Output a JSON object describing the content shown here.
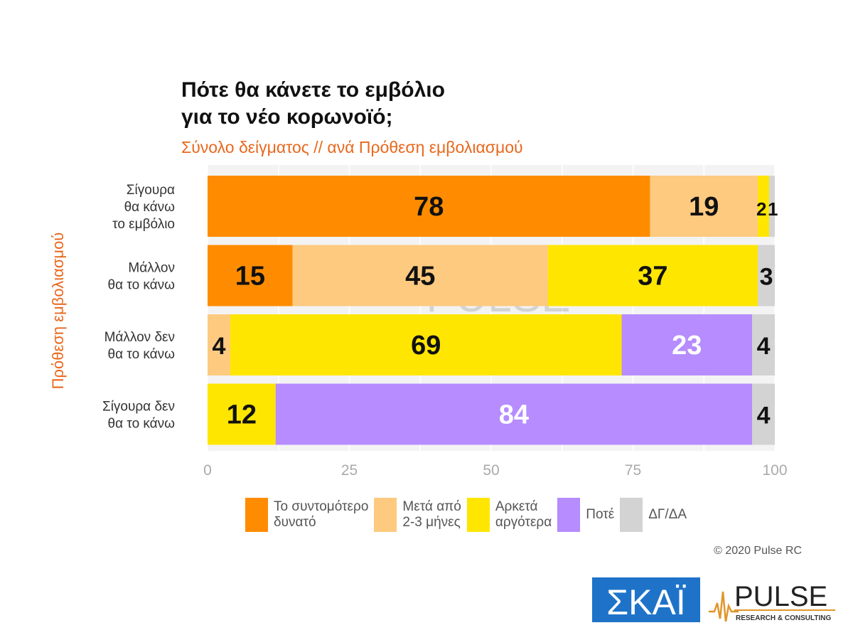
{
  "title_lines": [
    "Πότε θα κάνετε το εμβόλιο",
    "για το νέο κορωνοϊό;"
  ],
  "subtitle": "Σύνολο δείγματος // ανά Πρόθεση εμβολιασμού",
  "yaxis_title": "Πρόθεση εμβολιασμού",
  "copyright": "© 2020 Pulse RC",
  "logos": {
    "skai": "ΣΚΑΪ",
    "pulse": "PULSE",
    "pulse_tagline": "RESEARCH & CONSULTING",
    "watermark": "PULSE",
    "watermark_tagline": "RESEARCH & CONSULTING"
  },
  "chart_data": {
    "type": "bar",
    "orientation": "horizontal",
    "stacked": true,
    "categories": [
      [
        "Σίγουρα",
        "θα κάνω",
        "το εμβόλιο"
      ],
      [
        "Μάλλον",
        "θα το κάνω"
      ],
      [
        "Μάλλον δεν",
        "θα το κάνω"
      ],
      [
        "Σίγουρα δεν",
        "θα το κάνω"
      ]
    ],
    "series": [
      {
        "name": [
          "Το συντομότερο",
          "δυνατό"
        ],
        "color": "#ff8c00",
        "label_color": "#111111",
        "values": [
          78,
          15,
          0,
          0
        ]
      },
      {
        "name": [
          "Μετά από",
          "2-3 μήνες"
        ],
        "color": "#fdca80",
        "label_color": "#111111",
        "values": [
          19,
          45,
          4,
          0
        ]
      },
      {
        "name": [
          "Αρκετά",
          "αργότερα"
        ],
        "color": "#ffe600",
        "label_color": "#111111",
        "values": [
          2,
          37,
          69,
          12
        ]
      },
      {
        "name": [
          "Ποτέ"
        ],
        "color": "#b68cff",
        "label_color": "#ffffff",
        "values": [
          0,
          0,
          23,
          84
        ]
      },
      {
        "name": [
          "ΔΓ/ΔΑ"
        ],
        "color": "#d3d3d3",
        "label_color": "#111111",
        "values": [
          1,
          3,
          4,
          4
        ]
      }
    ],
    "xlim": [
      0,
      100
    ],
    "xticks": [
      0,
      25,
      50,
      75,
      100
    ],
    "grid": true,
    "legend_position": "bottom"
  }
}
